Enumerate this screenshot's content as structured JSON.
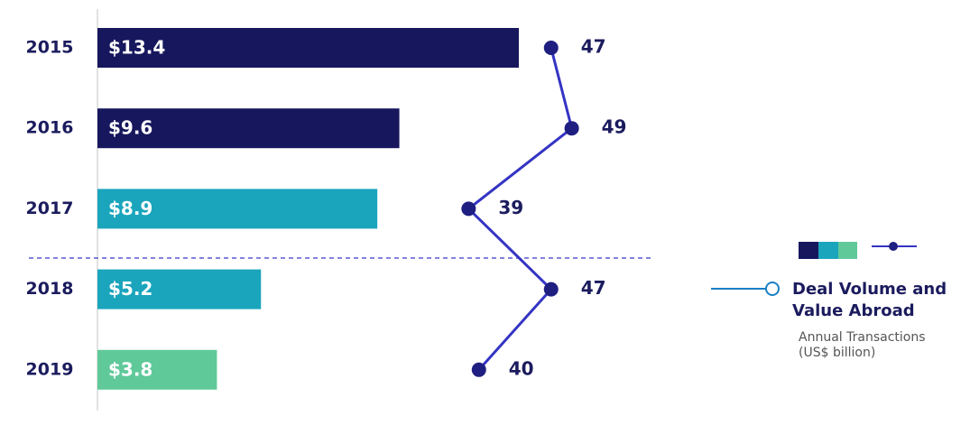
{
  "chart_data": {
    "type": "bar",
    "title": "Deal Volume and Value Abroad",
    "subtitle": "Annual Transactions (US$ billion)",
    "categories": [
      "2015",
      "2016",
      "2017",
      "2018",
      "2019"
    ],
    "xlim": [
      0,
      20
    ],
    "x2lim": [
      3,
      64
    ],
    "series": [
      {
        "type": "bar",
        "values": [
          13.4,
          9.6,
          8.9,
          5.2,
          3.8
        ],
        "value_labels": [
          "$13.4",
          "$9.6",
          "$8.9",
          "$5.2",
          "$3.8"
        ],
        "colors": [
          "#17175e",
          "#17175e",
          "#1aa5bd",
          "#1aa5bd",
          "#5fc99a"
        ]
      },
      {
        "type": "line",
        "axis": "x2",
        "values": [
          47,
          49,
          39,
          47,
          40
        ],
        "color": "#3434c4",
        "marker_color": "#1f1f82"
      }
    ]
  }
}
